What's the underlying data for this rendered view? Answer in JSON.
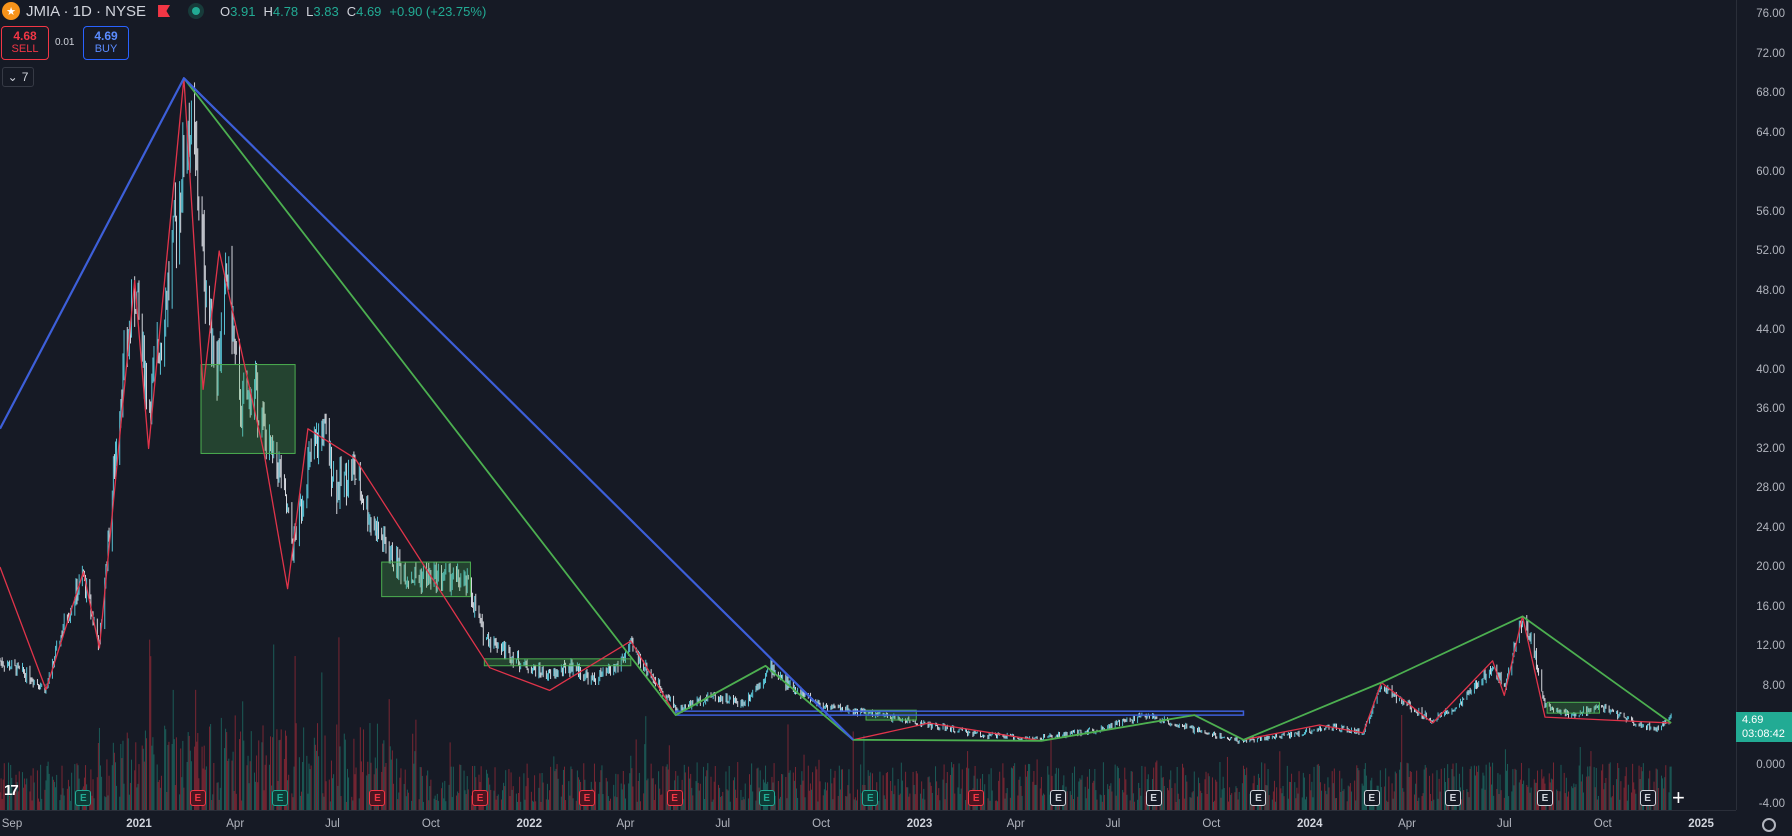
{
  "header": {
    "symbol": "JMIA · 1D · NYSE",
    "open_label": "O",
    "open": "3.91",
    "high_label": "H",
    "high": "4.78",
    "low_label": "L",
    "low": "3.83",
    "close_label": "C",
    "close": "4.69",
    "change": "+0.90 (+23.75%)"
  },
  "trade": {
    "sell_price": "4.68",
    "sell_label": "SELL",
    "buy_price": "4.69",
    "buy_label": "BUY",
    "spread": "0.01"
  },
  "indicators_collapse": {
    "count": "7"
  },
  "last_price_tag": {
    "price": "4.69",
    "countdown": "03:08:42"
  },
  "colors": {
    "background": "#161a25",
    "up": "#22ab94",
    "down": "#f23645",
    "zigzag_major": "#3d5fd9",
    "zigzag_mid": "#4caf50",
    "zigzag_minor": "#e0344a",
    "zone_fill": "#4caf50"
  },
  "earnings_badges": [
    {
      "label": "E",
      "color": "g"
    },
    {
      "label": "E",
      "color": "r"
    },
    {
      "label": "E",
      "color": "g"
    },
    {
      "label": "E",
      "color": "r"
    },
    {
      "label": "E",
      "color": "r"
    },
    {
      "label": "E",
      "color": "r"
    },
    {
      "label": "E",
      "color": "r"
    },
    {
      "label": "E",
      "color": "g"
    },
    {
      "label": "E",
      "color": "g"
    },
    {
      "label": "E",
      "color": "r"
    },
    {
      "label": "E",
      "color": "w"
    },
    {
      "label": "E",
      "color": "w"
    },
    {
      "label": "E",
      "color": "w"
    },
    {
      "label": "E",
      "color": "w"
    },
    {
      "label": "E",
      "color": "w"
    },
    {
      "label": "E",
      "color": "w"
    },
    {
      "label": "E",
      "color": "w"
    }
  ],
  "earnings_dates": [
    "2020-11-10",
    "2021-02-25",
    "2021-05-13",
    "2021-08-12",
    "2021-11-16",
    "2022-02-24",
    "2022-05-17",
    "2022-08-11",
    "2022-11-16",
    "2023-02-23",
    "2023-05-11",
    "2023-08-08",
    "2023-11-14",
    "2024-02-28",
    "2024-05-14",
    "2024-08-08",
    "2024-11-12"
  ],
  "chart_data": {
    "type": "candlestick",
    "ylim": [
      -4,
      76
    ],
    "xlim": [
      "2020-08-24",
      "2024-12-31"
    ],
    "grid": false,
    "y_ticks": [
      "76.00",
      "72.00",
      "68.00",
      "64.00",
      "60.00",
      "56.00",
      "52.00",
      "48.00",
      "44.00",
      "40.00",
      "36.00",
      "32.00",
      "28.00",
      "24.00",
      "20.00",
      "16.00",
      "12.00",
      "8.00",
      "4.00",
      "0.000",
      "-4.00"
    ],
    "x_ticks": [
      {
        "label": "Sep",
        "date": "2020-09-01",
        "year": false
      },
      {
        "label": "2021",
        "date": "2021-01-01",
        "year": true
      },
      {
        "label": "Apr",
        "date": "2021-04-01",
        "year": false
      },
      {
        "label": "Jul",
        "date": "2021-07-01",
        "year": false
      },
      {
        "label": "Oct",
        "date": "2021-10-01",
        "year": false
      },
      {
        "label": "2022",
        "date": "2022-01-01",
        "year": true
      },
      {
        "label": "Apr",
        "date": "2022-04-01",
        "year": false
      },
      {
        "label": "Jul",
        "date": "2022-07-01",
        "year": false
      },
      {
        "label": "Oct",
        "date": "2022-10-01",
        "year": false
      },
      {
        "label": "2023",
        "date": "2023-01-01",
        "year": true
      },
      {
        "label": "Apr",
        "date": "2023-04-01",
        "year": false
      },
      {
        "label": "Jul",
        "date": "2023-07-01",
        "year": false
      },
      {
        "label": "Oct",
        "date": "2023-10-01",
        "year": false
      },
      {
        "label": "2024",
        "date": "2024-01-01",
        "year": true
      },
      {
        "label": "Apr",
        "date": "2024-04-01",
        "year": false
      },
      {
        "label": "Jul",
        "date": "2024-07-01",
        "year": false
      },
      {
        "label": "Oct",
        "date": "2024-10-01",
        "year": false
      },
      {
        "label": "2025",
        "date": "2025-01-01",
        "year": true
      }
    ],
    "price_path": [
      [
        "2020-08-24",
        10.5
      ],
      [
        "2020-09-20",
        9
      ],
      [
        "2020-10-06",
        7.6
      ],
      [
        "2020-10-25",
        15
      ],
      [
        "2020-11-10",
        19
      ],
      [
        "2020-11-25",
        12
      ],
      [
        "2020-12-15",
        38
      ],
      [
        "2020-12-29",
        48
      ],
      [
        "2021-01-10",
        36
      ],
      [
        "2021-01-25",
        46
      ],
      [
        "2021-02-05",
        55
      ],
      [
        "2021-02-16",
        65
      ],
      [
        "2021-02-22",
        62
      ],
      [
        "2021-03-05",
        48
      ],
      [
        "2021-03-15",
        40
      ],
      [
        "2021-03-25",
        50
      ],
      [
        "2021-04-05",
        36
      ],
      [
        "2021-04-20",
        38
      ],
      [
        "2021-05-01",
        32
      ],
      [
        "2021-05-12",
        30
      ],
      [
        "2021-05-25",
        22
      ],
      [
        "2021-06-08",
        30
      ],
      [
        "2021-06-22",
        34
      ],
      [
        "2021-07-05",
        28
      ],
      [
        "2021-07-20",
        30
      ],
      [
        "2021-08-05",
        25
      ],
      [
        "2021-08-25",
        21
      ],
      [
        "2021-09-10",
        19
      ],
      [
        "2021-10-01",
        19
      ],
      [
        "2021-10-20",
        19
      ],
      [
        "2021-11-05",
        18
      ],
      [
        "2021-11-20",
        13
      ],
      [
        "2021-12-05",
        12
      ],
      [
        "2021-12-28",
        10
      ],
      [
        "2022-01-20",
        9
      ],
      [
        "2022-02-10",
        10
      ],
      [
        "2022-03-01",
        8.5
      ],
      [
        "2022-03-25",
        10
      ],
      [
        "2022-04-06",
        12
      ],
      [
        "2022-04-25",
        9
      ],
      [
        "2022-05-20",
        5.5
      ],
      [
        "2022-06-20",
        7
      ],
      [
        "2022-07-20",
        6.2
      ],
      [
        "2022-08-15",
        9.8
      ],
      [
        "2022-09-01",
        8
      ],
      [
        "2022-10-01",
        6
      ],
      [
        "2022-11-15",
        5.2
      ],
      [
        "2023-01-10",
        4
      ],
      [
        "2023-03-01",
        3
      ],
      [
        "2023-04-20",
        2.6
      ],
      [
        "2023-06-15",
        3.5
      ],
      [
        "2023-08-01",
        5
      ],
      [
        "2023-09-15",
        3.5
      ],
      [
        "2023-10-28",
        2.4
      ],
      [
        "2023-12-15",
        3
      ],
      [
        "2024-01-20",
        3.8
      ],
      [
        "2024-02-20",
        3.2
      ],
      [
        "2024-03-08",
        8
      ],
      [
        "2024-03-25",
        6.5
      ],
      [
        "2024-04-25",
        4.5
      ],
      [
        "2024-05-20",
        6
      ],
      [
        "2024-06-20",
        10
      ],
      [
        "2024-07-01",
        8
      ],
      [
        "2024-07-18",
        15
      ],
      [
        "2024-07-28",
        12
      ],
      [
        "2024-08-08",
        6
      ],
      [
        "2024-09-01",
        5
      ],
      [
        "2024-10-01",
        5.8
      ],
      [
        "2024-11-05",
        4
      ],
      [
        "2024-11-20",
        3.7
      ],
      [
        "2024-12-04",
        4.69
      ]
    ],
    "zigzag_major": [
      [
        "2020-08-24",
        34
      ],
      [
        "2021-02-12",
        69.5
      ],
      [
        "2022-10-31",
        2.5
      ]
    ],
    "zigzag_mid": [
      [
        "2021-02-12",
        69.5
      ],
      [
        "2022-05-18",
        5.0
      ],
      [
        "2022-08-10",
        10
      ],
      [
        "2022-10-31",
        2.5
      ],
      [
        "2023-04-25",
        2.4
      ],
      [
        "2023-09-15",
        5.0
      ],
      [
        "2023-10-31",
        2.5
      ],
      [
        "2024-03-08",
        8.3
      ],
      [
        "2024-07-18",
        15
      ],
      [
        "2024-12-04",
        4.2
      ]
    ],
    "zigzag_minor": [
      [
        "2020-08-24",
        20
      ],
      [
        "2020-10-06",
        7.6
      ],
      [
        "2020-11-10",
        19.5
      ],
      [
        "2020-11-25",
        11.8
      ],
      [
        "2020-12-28",
        49
      ],
      [
        "2021-01-10",
        32
      ],
      [
        "2021-02-12",
        69.5
      ],
      [
        "2021-03-02",
        38
      ],
      [
        "2021-03-17",
        52
      ],
      [
        "2021-04-28",
        31.5
      ],
      [
        "2021-05-20",
        17.8
      ],
      [
        "2021-06-08",
        34
      ],
      [
        "2021-07-22",
        31
      ],
      [
        "2021-11-25",
        9.8
      ],
      [
        "2022-01-20",
        7.5
      ],
      [
        "2022-04-06",
        12.5
      ],
      [
        "2022-05-18",
        5.0
      ],
      [
        "2022-08-10",
        10
      ],
      [
        "2022-10-31",
        2.5
      ],
      [
        "2023-01-10",
        4.2
      ],
      [
        "2023-04-25",
        2.4
      ],
      [
        "2023-09-15",
        5.0
      ],
      [
        "2023-10-31",
        2.5
      ],
      [
        "2024-01-10",
        4
      ],
      [
        "2024-02-20",
        3.2
      ],
      [
        "2024-03-08",
        8.3
      ],
      [
        "2024-04-25",
        4.2
      ],
      [
        "2024-06-20",
        10.5
      ],
      [
        "2024-07-01",
        7
      ],
      [
        "2024-07-18",
        15
      ],
      [
        "2024-08-08",
        4.8
      ],
      [
        "2024-12-04",
        4.2
      ]
    ],
    "zones": [
      {
        "x0": "2021-02-28",
        "x1": "2021-05-27",
        "y0": 31.5,
        "y1": 40.5
      },
      {
        "x0": "2021-08-16",
        "x1": "2021-11-07",
        "y0": 17,
        "y1": 20.5
      },
      {
        "x0": "2021-11-20",
        "x1": "2022-04-06",
        "y0": 10,
        "y1": 10.7
      },
      {
        "x0": "2022-11-12",
        "x1": "2022-12-29",
        "y0": 4.5,
        "y1": 5.5
      },
      {
        "x0": "2024-08-10",
        "x1": "2024-09-28",
        "y0": 5.2,
        "y1": 6.3
      }
    ],
    "blue_rect": {
      "x0": "2022-05-18",
      "x1": "2023-10-31",
      "y0": 5.0,
      "y1": 5.4
    }
  }
}
